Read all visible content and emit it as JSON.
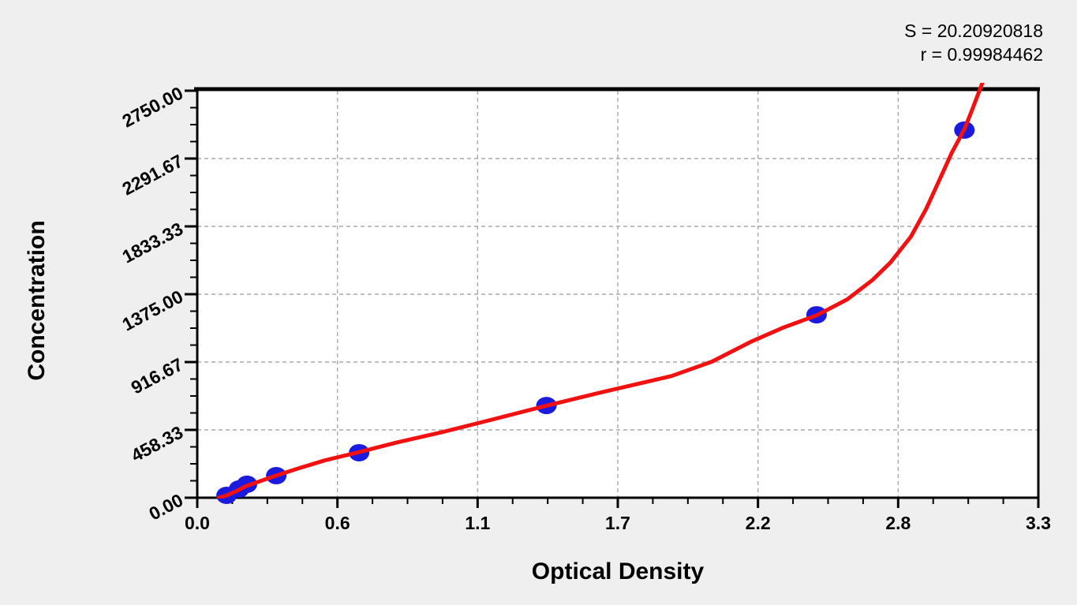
{
  "stats_panel": {
    "s_line": "S = 20.20920818",
    "r_line": "r = 0.99984462"
  },
  "chart_data": {
    "type": "scatter",
    "title": "",
    "xlabel": "Optical Density",
    "ylabel": "Concentration",
    "xlim": [
      0,
      3.3
    ],
    "ylim": [
      0,
      2750
    ],
    "x_major_ticks": [
      0,
      0.55,
      1.1,
      1.65,
      2.2,
      2.75,
      3.3
    ],
    "x_tick_labels": [
      "0.0",
      "0.6",
      "1.1",
      "1.7",
      "2.2",
      "2.8",
      "3.3"
    ],
    "x_minor_divisions": 4,
    "y_major_ticks": [
      0,
      458.33,
      916.67,
      1375,
      1833.33,
      2291.67,
      2750
    ],
    "y_tick_labels": [
      "0.00",
      "458.33",
      "916.67",
      "1375.00",
      "1833.33",
      "2291.67",
      "2750.00"
    ],
    "y_minor_divisions": 4,
    "grid": "dashed gray lines at interior major ticks, both axes",
    "legend": "none",
    "stats": {
      "S": "20.20920818",
      "r": "0.99984462"
    },
    "points_note": "blue filled dots, standard-curve samples (OD, Concentration) read from plot",
    "points": [
      {
        "od": 0.115,
        "conc": 16
      },
      {
        "od": 0.164,
        "conc": 59
      },
      {
        "od": 0.195,
        "conc": 91
      },
      {
        "od": 0.31,
        "conc": 149
      },
      {
        "od": 0.635,
        "conc": 304
      },
      {
        "od": 1.37,
        "conc": 623
      },
      {
        "od": 2.43,
        "conc": 1236
      },
      {
        "od": 3.01,
        "conc": 2484
      }
    ],
    "fit_curve": [
      [
        0.084,
        0
      ],
      [
        0.115,
        15
      ],
      [
        0.155,
        46
      ],
      [
        0.19,
        78
      ],
      [
        0.25,
        114
      ],
      [
        0.31,
        150
      ],
      [
        0.4,
        200
      ],
      [
        0.5,
        252
      ],
      [
        0.635,
        308
      ],
      [
        0.78,
        372
      ],
      [
        0.96,
        443
      ],
      [
        1.15,
        525
      ],
      [
        1.37,
        622
      ],
      [
        1.6,
        718
      ],
      [
        1.86,
        822
      ],
      [
        2.02,
        920
      ],
      [
        2.17,
        1052
      ],
      [
        2.3,
        1150
      ],
      [
        2.43,
        1232
      ],
      [
        2.55,
        1340
      ],
      [
        2.65,
        1472
      ],
      [
        2.72,
        1590
      ],
      [
        2.8,
        1764
      ],
      [
        2.86,
        1952
      ],
      [
        2.91,
        2140
      ],
      [
        2.96,
        2330
      ],
      [
        3.01,
        2490
      ],
      [
        3.04,
        2620
      ],
      [
        3.08,
        2800
      ]
    ],
    "colors": {
      "point": "#1b1bdf",
      "curve": "#f21111",
      "grid": "#a9a9a9",
      "frame": "#000000",
      "background": "#efefef",
      "plot_background": "#ffffff"
    }
  }
}
